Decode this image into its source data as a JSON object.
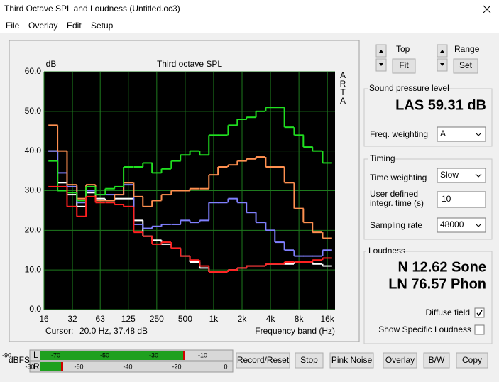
{
  "window": {
    "title": "Third Octave SPL and Loudness (Untitled.oc3)"
  },
  "menu": [
    "File",
    "Overlay",
    "Edit",
    "Setup"
  ],
  "chart_data": {
    "type": "step",
    "title": "Third octave SPL",
    "y_label": "dB",
    "x_label": "Frequency band (Hz)",
    "brand": "ARTA",
    "x": [
      20,
      25,
      31.5,
      40,
      50,
      63,
      80,
      100,
      125,
      160,
      200,
      250,
      315,
      400,
      500,
      630,
      800,
      1000,
      1250,
      1600,
      2000,
      2500,
      3150,
      4000,
      5000,
      6300,
      8000,
      10000,
      12500,
      16000
    ],
    "xlim": [
      16,
      19300
    ],
    "log_x": true,
    "xticks": [
      16,
      32,
      63,
      125,
      250,
      500,
      {
        "value": 1000,
        "label": "1k"
      },
      {
        "value": 2000,
        "label": "2k"
      },
      {
        "value": 4000,
        "label": "4k"
      },
      {
        "value": 8000,
        "label": "8k"
      },
      {
        "value": 16000,
        "label": "16k"
      }
    ],
    "ylim": [
      0,
      60
    ],
    "yticks": [
      {
        "value": 0,
        "label": "0.0"
      },
      {
        "value": 10,
        "label": "10.0"
      },
      {
        "value": 20,
        "label": "20.0"
      },
      {
        "value": 30,
        "label": "30.0"
      },
      {
        "value": 40,
        "label": "40.0"
      },
      {
        "value": 50,
        "label": "50.0"
      },
      {
        "value": 60,
        "label": "60.0"
      }
    ],
    "grid": true,
    "background": "#000000",
    "grid_color": "#1e7a1e",
    "series": [
      {
        "color": "#ffffff",
        "values": [
          40,
          32,
          29,
          26,
          29.5,
          28,
          27.5,
          28,
          28,
          22.5,
          18.5,
          17.5,
          16.5,
          15.5,
          13.5,
          12,
          10.5,
          9.5,
          9.5,
          10,
          10.5,
          11,
          11,
          11.5,
          11.5,
          11.5,
          12,
          12,
          11.5,
          11
        ]
      },
      {
        "color": "#8080ff",
        "values": [
          40,
          34.5,
          31,
          27,
          30,
          29,
          29,
          29,
          31.5,
          21.5,
          20.5,
          21,
          21.5,
          21.5,
          22.5,
          22,
          22.5,
          27,
          27,
          28,
          27,
          24.5,
          22,
          20,
          17,
          15,
          13.5,
          13.5,
          13.5,
          15
        ]
      },
      {
        "color": "#ff9050",
        "values": [
          46.5,
          40,
          31.5,
          28,
          31.5,
          27.5,
          27.5,
          29,
          32,
          28.5,
          26,
          27.5,
          29,
          30,
          30,
          30.5,
          30.5,
          34,
          36,
          36.5,
          37.5,
          38,
          38.5,
          36,
          36,
          32,
          25.5,
          22,
          19.5,
          18
        ]
      },
      {
        "color": "#20e020",
        "values": [
          37.5,
          30,
          29.5,
          27.5,
          31,
          29,
          30.5,
          31,
          36,
          36,
          37,
          34.5,
          35.5,
          37.5,
          39,
          40,
          39,
          44,
          44,
          46.5,
          48,
          48.5,
          50,
          51,
          51,
          46,
          44,
          41,
          40,
          37
        ]
      },
      {
        "color": "#ff2020",
        "values": [
          31,
          31,
          26,
          23.5,
          28.5,
          27,
          27,
          26.5,
          26,
          19.5,
          18.5,
          16.5,
          17,
          15.5,
          13.5,
          12.5,
          11,
          9.5,
          9.5,
          10,
          10.5,
          11,
          11,
          11.5,
          11.5,
          12,
          12,
          12,
          12.5,
          13
        ]
      }
    ]
  },
  "cursor": {
    "label": "Cursor:",
    "value": "20.0 Hz, 37.48 dB"
  },
  "view": {
    "top": "Top",
    "fit": "Fit",
    "range": "Range",
    "set": "Set"
  },
  "spl": {
    "title": "Sound pressure level",
    "reading": "LAS 59.31 dB",
    "weighting_label": "Freq. weighting",
    "weighting": "A"
  },
  "timing": {
    "title": "Timing",
    "time_weighting_label": "Time weighting",
    "time_weighting": "Slow",
    "integr_label_1": "User defined",
    "integr_label_2": "integr. time (s)",
    "integr_time": "10",
    "sampling_label": "Sampling rate",
    "sampling_rate": "48000"
  },
  "loudness": {
    "title": "Loudness",
    "sone": "N 12.62 Sone",
    "phon": "LN 76.57 Phon",
    "diffuse_label": "Diffuse field",
    "diffuse": true,
    "specific_label": "Show Specific Loudness",
    "specific": false
  },
  "meter": {
    "unit": "dBFS",
    "left": "L",
    "right": "R",
    "left_scale": [
      -90,
      -70,
      -50,
      -30,
      -10
    ],
    "right_scale": [
      -80,
      -60,
      -40,
      -20,
      0
    ]
  },
  "buttons": [
    "Record/Reset",
    "Stop",
    "Pink Noise",
    "Overlay",
    "B/W",
    "Copy"
  ]
}
